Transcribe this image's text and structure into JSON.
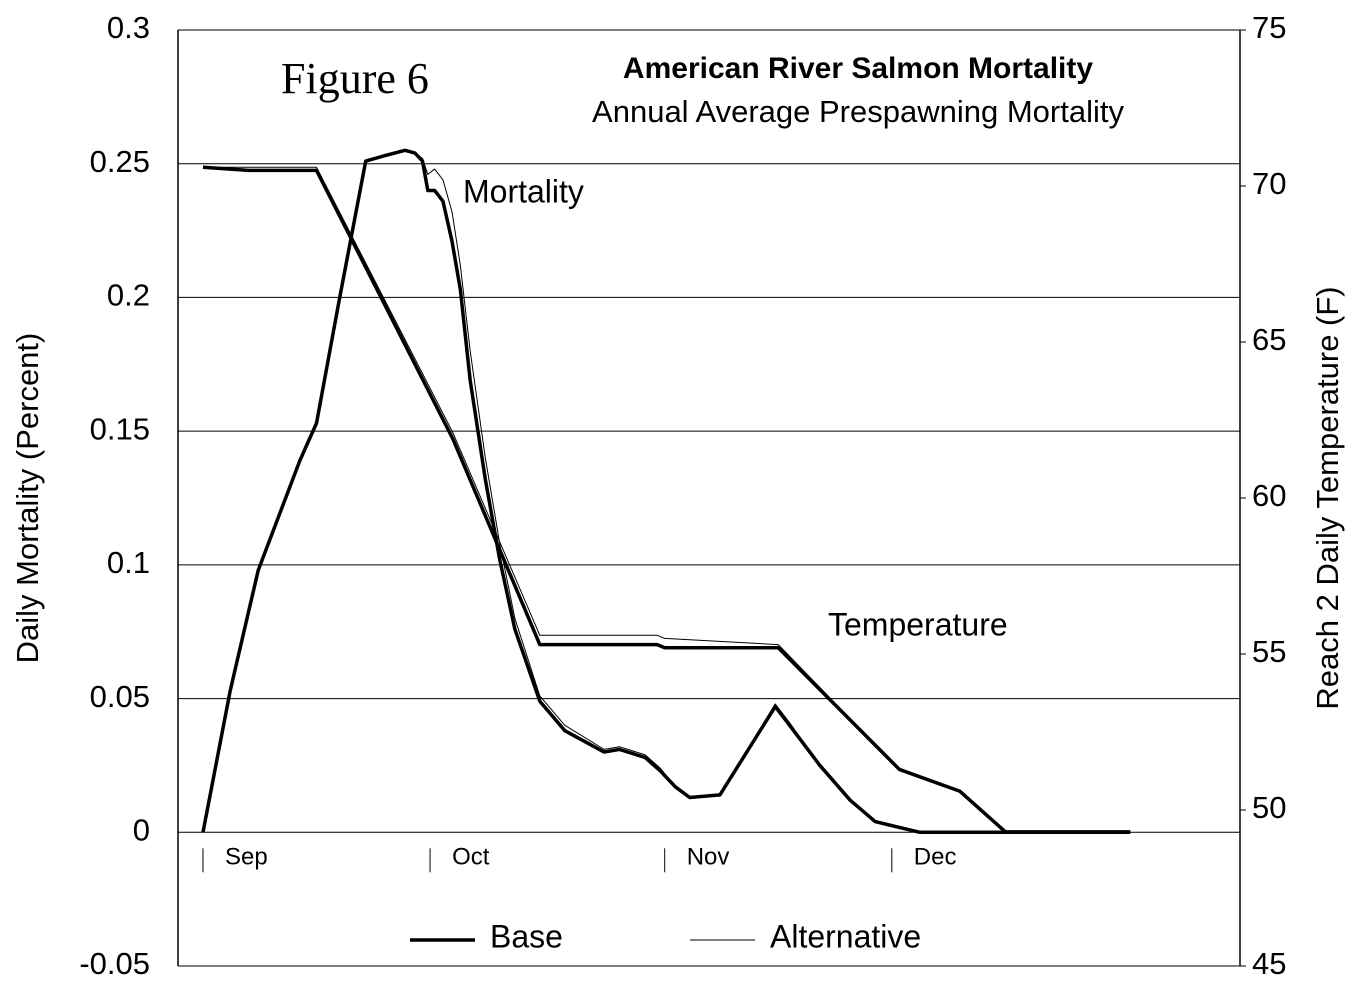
{
  "chart_data": {
    "type": "line",
    "title": "American River Salmon Mortality",
    "subtitle": "Annual Average Prespawning Mortality",
    "annotations": {
      "figure": "Figure 6",
      "mortality": "Mortality",
      "temperature": "Temperature"
    },
    "ylabel": "Daily Mortality (Percent)",
    "y2label": "Reach 2 Daily Temperature (F)",
    "xlim": [
      -3.3,
      137
    ],
    "xticks": [
      {
        "value": 0,
        "label": "Sep"
      },
      {
        "value": 30,
        "label": "Oct"
      },
      {
        "value": 61,
        "label": "Nov"
      },
      {
        "value": 91,
        "label": "Dec"
      }
    ],
    "ylim": [
      -0.05,
      0.3
    ],
    "yticks": [
      -0.05,
      0,
      0.05,
      0.1,
      0.15,
      0.2,
      0.25,
      0.3
    ],
    "y2lim": [
      45,
      75
    ],
    "y2ticks": [
      45,
      50,
      55,
      60,
      65,
      70,
      75
    ],
    "grid": true,
    "legend": "bottom",
    "series": [
      {
        "name": "Base",
        "color": "#000000",
        "linewidth": 3.5,
        "axis": "y",
        "x": [
          0,
          3.6,
          7.3,
          12.8,
          15,
          18,
          21.5,
          24,
          26.7,
          28,
          29,
          29.7,
          30.6,
          31.7,
          32.9,
          34,
          35.3,
          37.3,
          39.2,
          41.2,
          44.5,
          47.8,
          53,
          55,
          58.4,
          60.4,
          62.4,
          64.3,
          68.3,
          75.6,
          77.5,
          81.5,
          85.5,
          88.8,
          94.7,
          122.5
        ],
        "values": [
          0,
          0.053,
          0.098,
          0.139,
          0.153,
          0.199,
          0.251,
          0.253,
          0.255,
          0.254,
          0.251,
          0.24,
          0.24,
          0.236,
          0.221,
          0.203,
          0.169,
          0.132,
          0.102,
          0.076,
          0.049,
          0.038,
          0.03,
          0.031,
          0.028,
          0.023,
          0.017,
          0.013,
          0.014,
          0.047,
          0.04,
          0.025,
          0.012,
          0.004,
          0,
          0
        ]
      },
      {
        "name": "Alternative",
        "color": "#000000",
        "linewidth": 1,
        "axis": "y",
        "x": [
          0,
          3.6,
          7.3,
          12.8,
          15,
          18,
          21.5,
          24,
          26.7,
          28,
          29,
          29.7,
          30.6,
          31.7,
          32.9,
          34,
          35.3,
          37.3,
          39.2,
          41.2,
          44.5,
          47.8,
          53,
          55,
          58.4,
          60.4,
          62.4,
          64.3,
          68.3,
          75.6,
          77.5,
          81.5,
          85.5,
          88.8,
          94.7,
          122.5
        ],
        "values": [
          0,
          0.053,
          0.098,
          0.139,
          0.153,
          0.199,
          0.251,
          0.253,
          0.255,
          0.254,
          0.252,
          0.246,
          0.248,
          0.244,
          0.232,
          0.212,
          0.18,
          0.14,
          0.108,
          0.08,
          0.051,
          0.04,
          0.031,
          0.032,
          0.029,
          0.024,
          0.017,
          0.013,
          0.014,
          0.048,
          0.041,
          0.025,
          0.012,
          0.004,
          0,
          0
        ]
      },
      {
        "name": "Base",
        "color": "#000000",
        "linewidth": 3.5,
        "axis": "y2",
        "x": [
          0,
          6,
          15,
          33,
          44.5,
          60,
          61,
          76,
          92,
          100,
          106,
          122.5
        ],
        "values": [
          70.6,
          70.5,
          70.5,
          61.9,
          55.3,
          55.3,
          55.2,
          55.2,
          51.3,
          50.6,
          49.3,
          49.3
        ]
      },
      {
        "name": "Alternative",
        "color": "#000000",
        "linewidth": 1,
        "axis": "y2",
        "x": [
          0,
          6,
          15,
          33,
          44.5,
          60,
          61,
          76,
          92,
          100,
          106,
          122.5
        ],
        "values": [
          70.6,
          70.6,
          70.6,
          62.1,
          55.6,
          55.6,
          55.5,
          55.3,
          51.3,
          50.6,
          49.3,
          49.3
        ]
      }
    ]
  }
}
